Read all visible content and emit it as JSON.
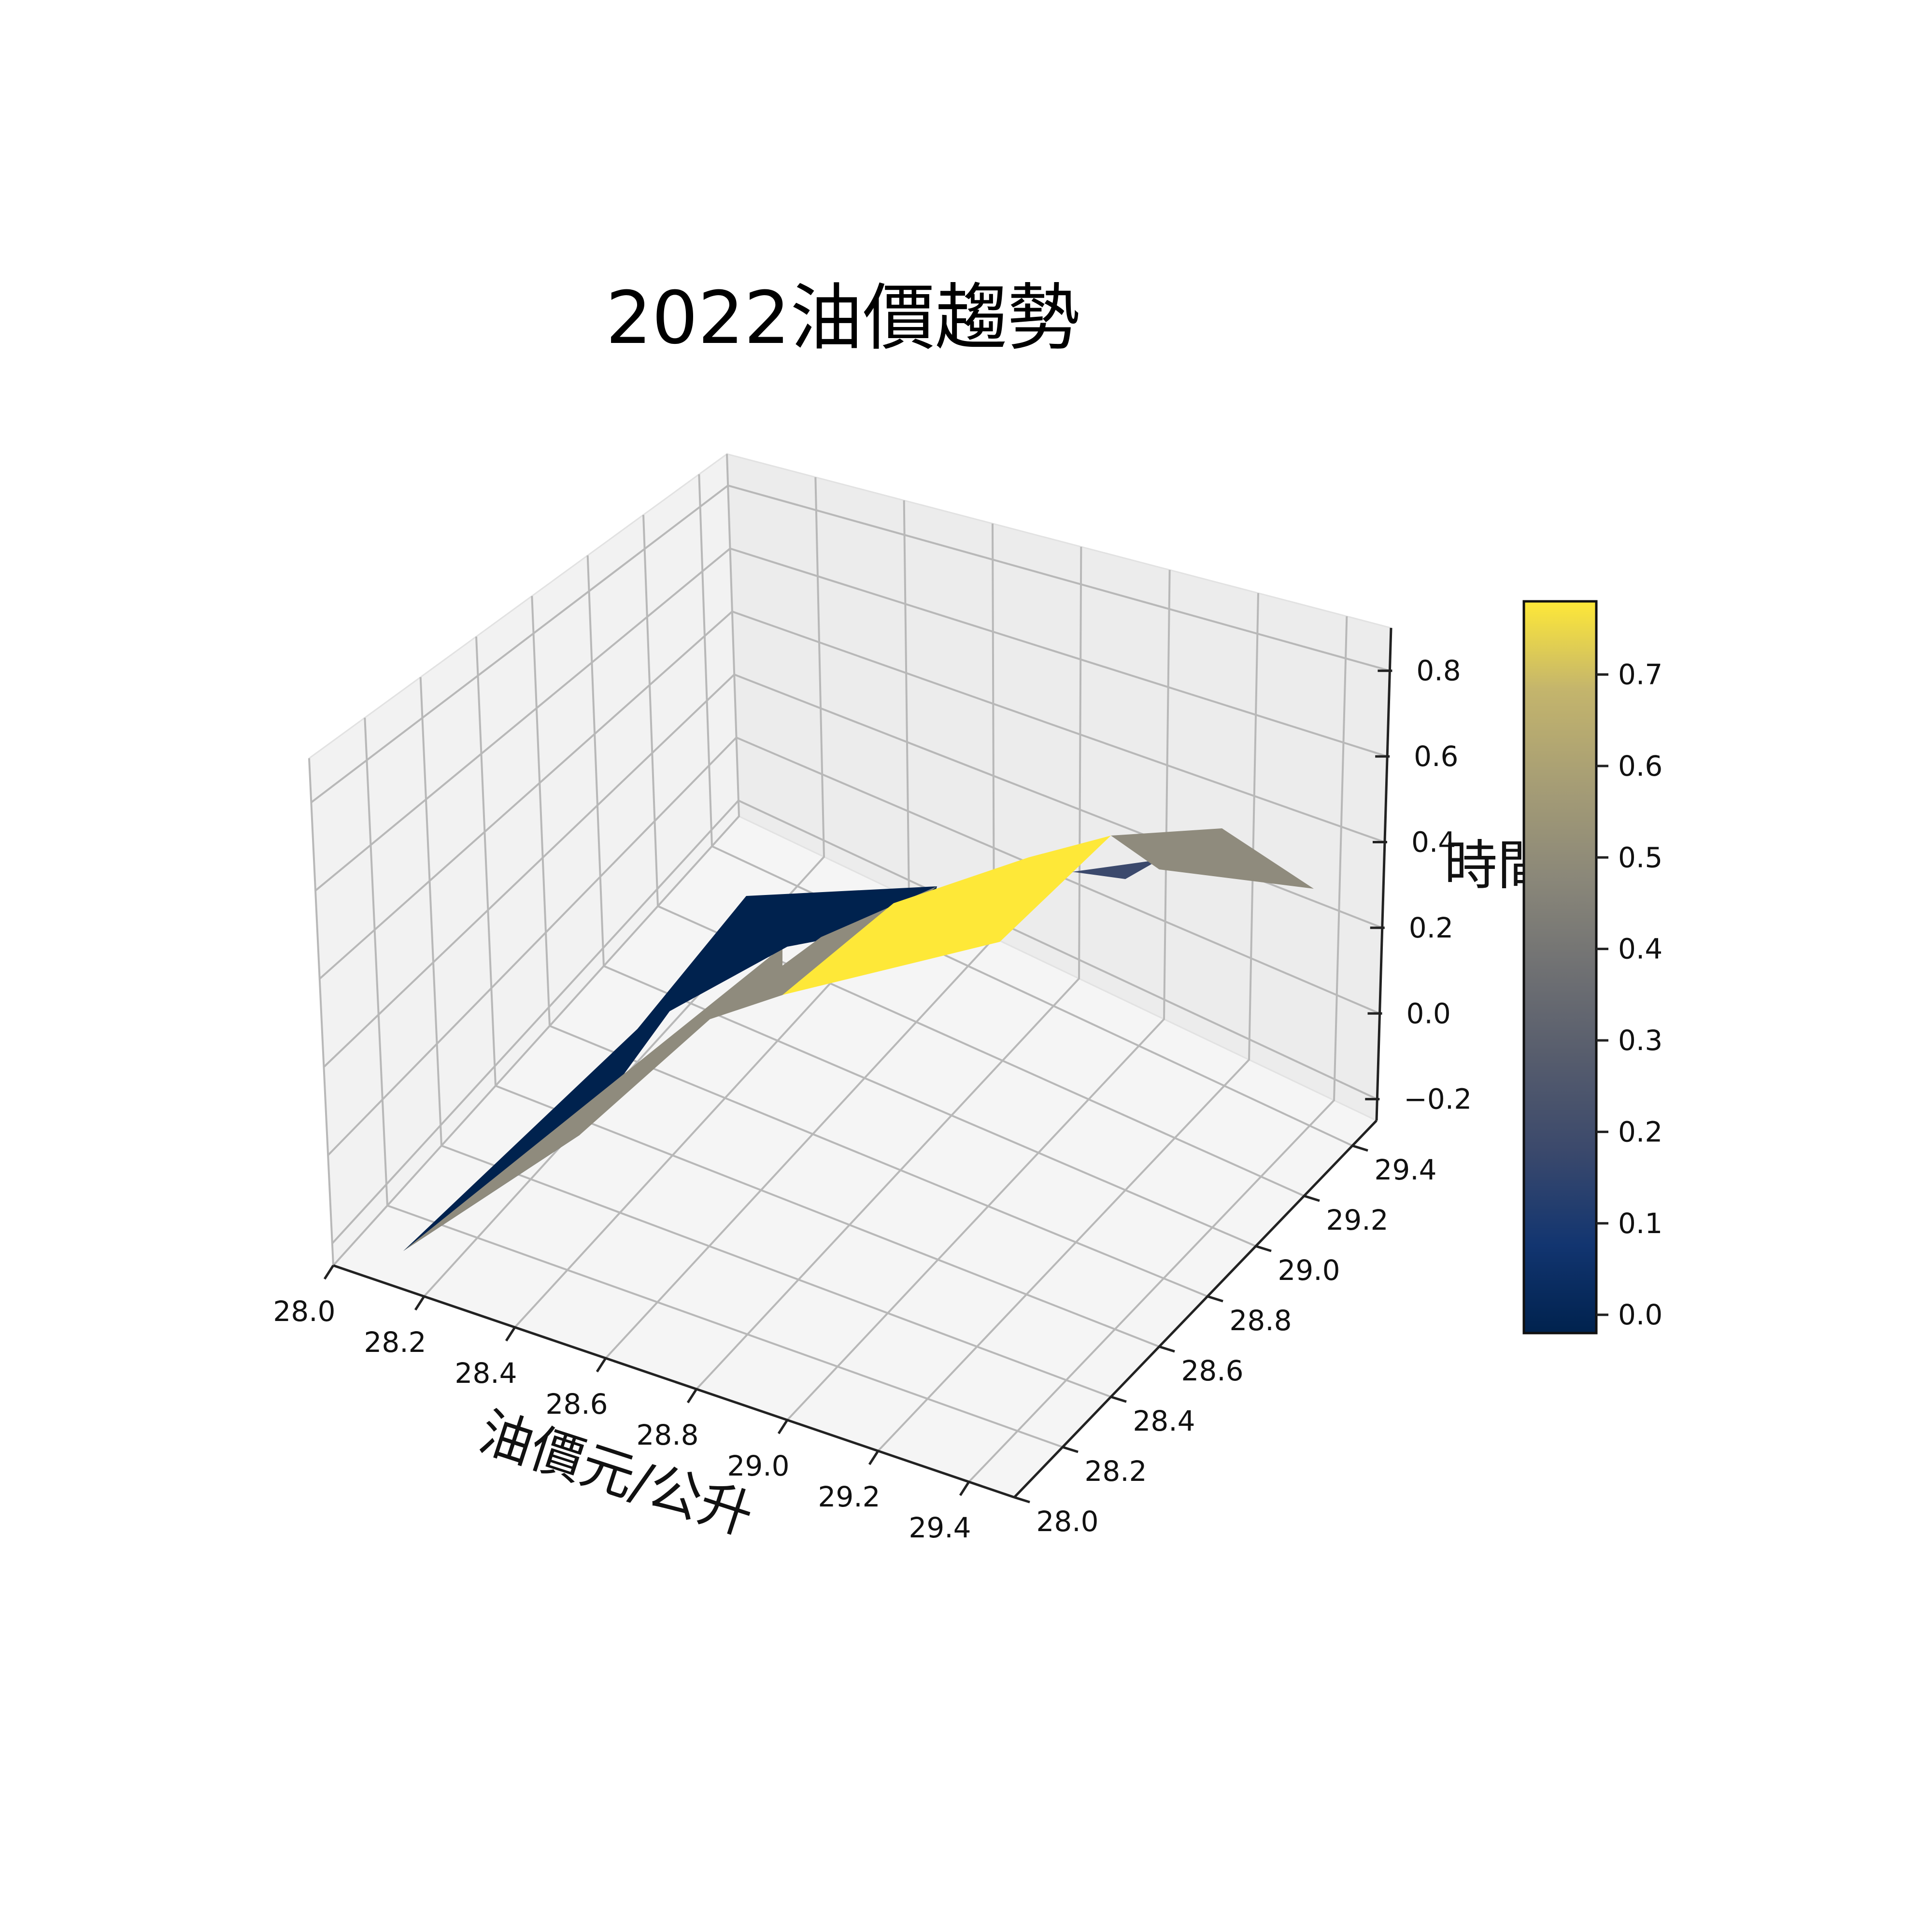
{
  "chart_data": {
    "type": "surface3d",
    "title": "2022油價趨勢",
    "xlabel": "油價元/公升",
    "ylabel": "",
    "zlabel": "時間",
    "x_ticks": [
      "28.0",
      "28.2",
      "28.4",
      "28.6",
      "28.8",
      "29.0",
      "29.2",
      "29.4"
    ],
    "y_ticks": [
      "28.0",
      "28.2",
      "28.4",
      "28.6",
      "28.8",
      "29.0",
      "29.2",
      "29.4"
    ],
    "z_ticks": [
      "−0.2",
      "0.0",
      "0.2",
      "0.4",
      "0.6",
      "0.8"
    ],
    "colorbar_ticks": [
      "0.0",
      "0.1",
      "0.2",
      "0.3",
      "0.4",
      "0.5",
      "0.6",
      "0.7"
    ],
    "xlim": [
      28.0,
      29.5
    ],
    "ylim": [
      28.0,
      29.5
    ],
    "zlim": [
      -0.25,
      0.9
    ],
    "colorbar_range": [
      -0.02,
      0.78
    ],
    "colormap": "cividis",
    "grid": true,
    "surface_points": [
      {
        "x": 28.05,
        "y": 28.05,
        "z": -0.06
      },
      {
        "x": 28.6,
        "y": 28.2,
        "z": 0.04
      },
      {
        "x": 28.2,
        "y": 28.6,
        "z": 0.05
      },
      {
        "x": 28.95,
        "y": 28.95,
        "z": 0.4
      },
      {
        "x": 29.45,
        "y": 29.45,
        "z": 0.75
      }
    ],
    "colors": {
      "dark": "#00224e",
      "gray": "#8f8b7d",
      "yellow": "#fee838"
    }
  }
}
